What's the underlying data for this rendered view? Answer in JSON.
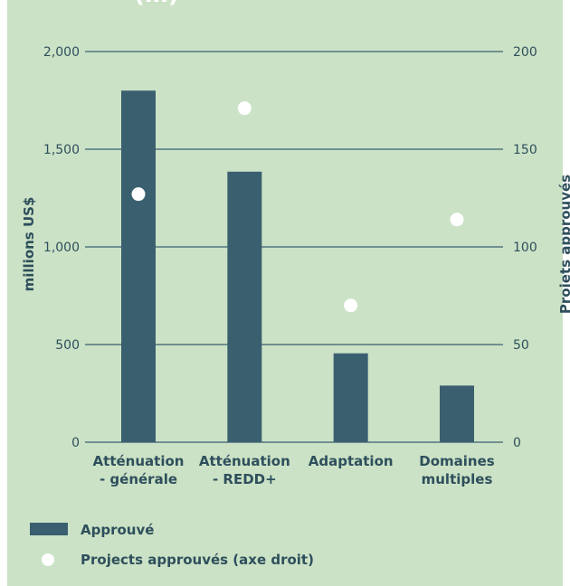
{
  "chart_data": {
    "type": "bar",
    "title": "(…)",
    "categories": [
      [
        "Atténuation",
        "- générale"
      ],
      [
        "Atténuation",
        "- REDD+"
      ],
      [
        "Adaptation"
      ],
      [
        "Domaines",
        "multiples"
      ]
    ],
    "series": [
      {
        "name": "Approuvé",
        "type": "bar",
        "axis": "left",
        "values": [
          1800,
          1385,
          455,
          290
        ]
      },
      {
        "name": "Projects approuvés (axe droit)",
        "type": "scatter",
        "axis": "right",
        "values": [
          127,
          171,
          70,
          114
        ]
      }
    ],
    "ylabel": "millions US$",
    "ylabel_right": "Projets approuvés",
    "ylim": [
      0,
      2000
    ],
    "ylim_right": [
      0,
      200
    ],
    "yticks": [
      "0",
      "500",
      "1,000",
      "1,500",
      "2,000"
    ],
    "yticks_right": [
      "0",
      "50",
      "100",
      "150",
      "200"
    ],
    "grid": true,
    "legend_position": "bottom-left"
  },
  "colors": {
    "background": "#cbe2c6",
    "bar": "#3a5f6f",
    "marker": "#ffffff",
    "text": "#2e4f5c",
    "grid": "#3a5f6f"
  }
}
